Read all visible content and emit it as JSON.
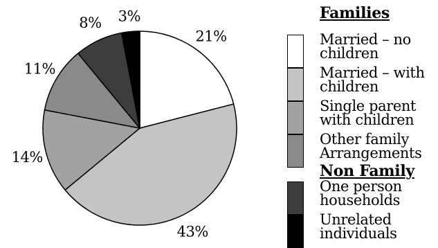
{
  "chart_data": {
    "type": "pie",
    "slices": [
      {
        "label": "Married – no children",
        "value": 21,
        "display": "21%",
        "color": "#ffffff"
      },
      {
        "label": "Married – with children",
        "value": 43,
        "display": "43%",
        "color": "#c4c4c4"
      },
      {
        "label": "Single parent with children",
        "value": 14,
        "display": "14%",
        "color": "#a2a2a2"
      },
      {
        "label": "Other family Arrangements",
        "value": 11,
        "display": "11%",
        "color": "#8a8a8a"
      },
      {
        "label": "One person households",
        "value": 8,
        "display": "8%",
        "color": "#3d3d3d"
      },
      {
        "label": "Unrelated individuals",
        "value": 3,
        "display": "3%",
        "color": "#000000"
      }
    ],
    "legend": {
      "placement": "right",
      "groups": [
        {
          "heading": "Families",
          "items": [
            0,
            1,
            2,
            3
          ]
        },
        {
          "heading": "Non Family",
          "items": [
            4,
            5
          ]
        }
      ]
    }
  },
  "legend_text": {
    "families_heading": "Families",
    "nonfamily_heading": "Non Family",
    "item0": "Married – no children",
    "item1": "Married – with children",
    "item2": "Single parent with children",
    "item3": "Other family Arrangements",
    "item4": "One person households",
    "item5": "Unrelated individuals"
  }
}
